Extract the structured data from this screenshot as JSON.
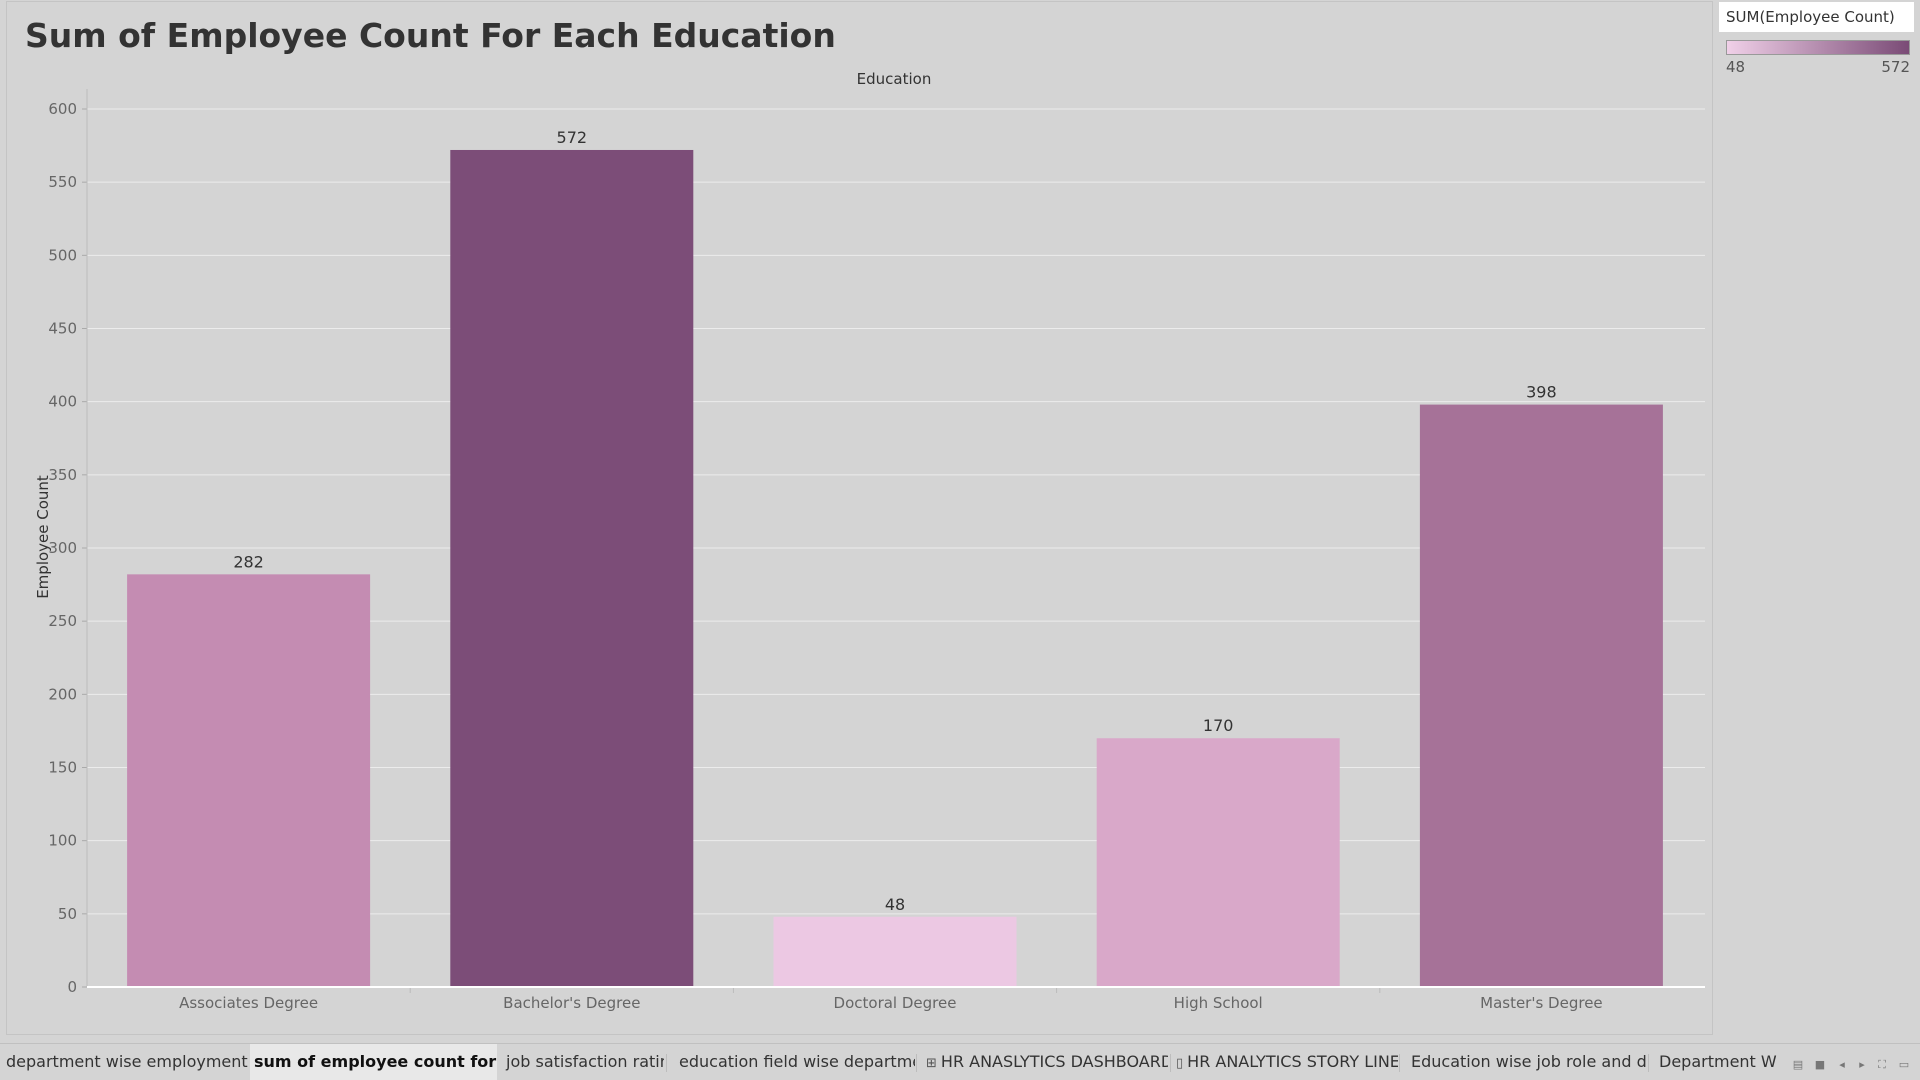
{
  "sheet": {
    "title": "Sum of Employee Count For Each Education"
  },
  "legend": {
    "title": "SUM(Employee Count)",
    "min_label": "48",
    "max_label": "572",
    "color_low": "#f0d0e8",
    "color_high": "#7a4b76"
  },
  "chart_data": {
    "type": "bar",
    "title": "Sum of Employee Count For Each Education",
    "column_header": "Education",
    "xlabel": "",
    "ylabel": "Employee Count",
    "categories": [
      "Associates Degree",
      "Bachelor's Degree",
      "Doctoral Degree",
      "High School",
      "Master's Degree"
    ],
    "values": [
      282,
      572,
      48,
      170,
      398
    ],
    "data_labels": [
      "282",
      "572",
      "48",
      "170",
      "398"
    ],
    "bar_colors": [
      "#c48cb2",
      "#7c4d78",
      "#ecc8e3",
      "#d9a8c9",
      "#a67298"
    ],
    "ylim": [
      0,
      600
    ],
    "yticks": [
      0,
      50,
      100,
      150,
      200,
      250,
      300,
      350,
      400,
      450,
      500,
      550,
      600
    ],
    "ytick_labels": [
      "0",
      "50",
      "100",
      "150",
      "200",
      "250",
      "300",
      "350",
      "400",
      "450",
      "500",
      "550",
      "600"
    ],
    "grid": true,
    "legend_position": "top-right"
  },
  "tabs": [
    {
      "label": "department wise employment c...",
      "icon": "",
      "active": false
    },
    {
      "label": "sum of employee count for eac...",
      "icon": "",
      "active": true
    },
    {
      "label": "job satisfaction rating",
      "icon": "",
      "active": false
    },
    {
      "label": "education field wise department",
      "icon": "",
      "active": false
    },
    {
      "label": "HR ANASLYTICS DASHBOARD",
      "icon": "dashboard-icon",
      "active": false
    },
    {
      "label": "HR ANALYTICS STORY LINE",
      "icon": "story-icon",
      "active": false
    },
    {
      "label": "Education wise job role and dep...",
      "icon": "",
      "active": false
    },
    {
      "label": "Department Wise",
      "icon": "",
      "active": false
    }
  ],
  "nav_controls": [
    "show-sheet-sorter-icon",
    "show-filmstrip-icon",
    "prev-sheet-icon",
    "next-sheet-icon",
    "presentation-mode-icon",
    "fullscreen-icon"
  ]
}
